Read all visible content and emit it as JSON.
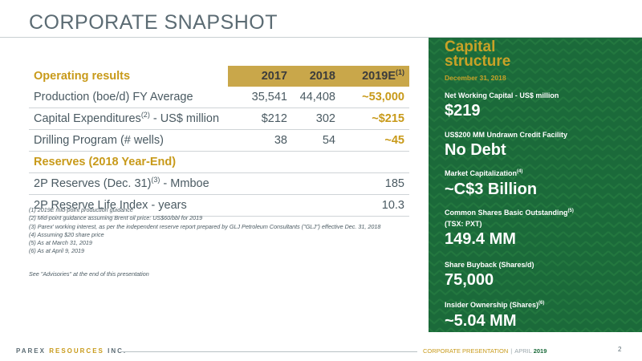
{
  "title": "CORPORATE SNAPSHOT",
  "table": {
    "header": {
      "label": "Operating results",
      "c1": "2017",
      "c2": "2018",
      "c3": "2019E",
      "c3_sup": "(1)"
    },
    "rows": [
      {
        "label": "Production (boe/d)  FY Average",
        "sup": "",
        "label_tail": "",
        "c1": "35,541",
        "c2": "44,408",
        "c3": "~53,000"
      },
      {
        "label": "Capital Expenditures",
        "sup": "(2)",
        "label_tail": " - US$ million",
        "c1": "$212",
        "c2": "302",
        "c3": "~$215"
      },
      {
        "label": "Drilling Program (# wells)",
        "sup": "",
        "label_tail": "",
        "c1": "38",
        "c2": "54",
        "c3": "~45"
      }
    ],
    "section": "Reserves (2018 Year-End)",
    "reserve_rows": [
      {
        "label": "2P Reserves (Dec. 31)",
        "sup": "(3)",
        "label_tail": "  - Mmboe",
        "value": "185"
      },
      {
        "label": "2P Reserve Life Index - years",
        "sup": "",
        "label_tail": "",
        "value": "10.3"
      }
    ]
  },
  "notes": [
    "(1) 2019E mid-point  production guidance",
    "(2) Mid-point guidance assuming Brent oil price: US$60/bbl for 2019",
    "(3) Parex' working interest, as per the independent reserve report prepared by GLJ Petroleum Consultants (\"GLJ\") effective  Dec. 31, 2018",
    "(4) Assuming $20 share price",
    "(5) As at March 31, 2019",
    "(6) As at April 9, 2019"
  ],
  "see_advisories": "See \"Advisories\" at the end of this presentation",
  "capital": {
    "title_line1": "Capital",
    "title_line2": "structure",
    "date": "December 31, 2018",
    "items": [
      {
        "label": "Net Working Capital  - US$ million",
        "sup": "",
        "label2": "",
        "value": "$219"
      },
      {
        "label": "US$200 MM Undrawn Credit Facility",
        "sup": "",
        "label2": "",
        "value": "No Debt"
      },
      {
        "label": "Market Capitalization",
        "sup": "(4)",
        "label2": "",
        "value": "~C$3 Billion"
      },
      {
        "label": "Common Shares Basic Outstanding",
        "sup": "(5)",
        "label2": "(TSX: PXT)",
        "value": "149.4 MM"
      },
      {
        "label": "Share Buyback (Shares/d)",
        "sup": "",
        "label2": "",
        "value": "75,000"
      },
      {
        "label": "Insider Ownership (Shares)",
        "sup": "(6)",
        "label2": "",
        "value": "~5.04 MM"
      }
    ]
  },
  "footer": {
    "brand_main": "PAREX ",
    "brand_accent": "RESOURCES",
    "brand_tail": " INC.",
    "presentation": "CORPORATE PRESENTATION",
    "separator": "|",
    "month": "APRIL",
    "year": "2019",
    "page": "2"
  },
  "colors": {
    "gold": "#c89a1a",
    "green": "#1b6a3a",
    "gray_text": "#4a5a62",
    "header_bg": "#c9a74a"
  }
}
